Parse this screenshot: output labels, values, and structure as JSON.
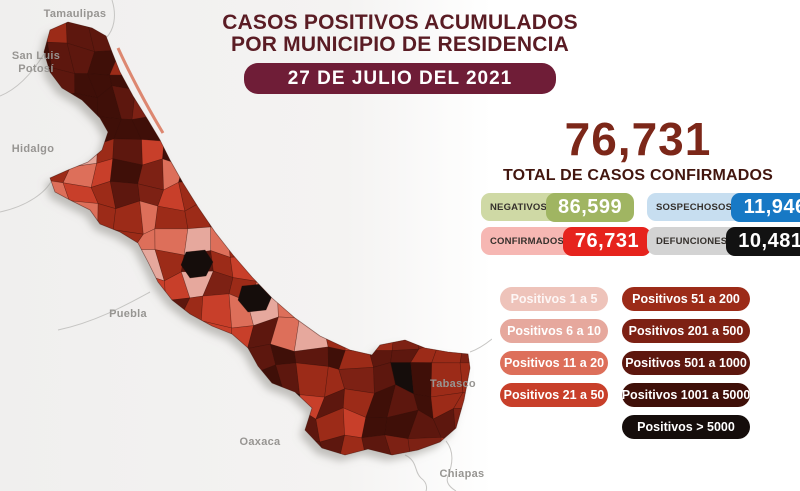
{
  "header": {
    "title_line1": "CASOS POSITIVOS ACUMULADOS",
    "title_line2": "POR MUNICIPIO DE RESIDENCIA",
    "date": "27 DE JULIO DEL 2021"
  },
  "summary": {
    "total_value": "76,731",
    "total_label": "TOTAL DE CASOS CONFIRMADOS"
  },
  "badges": [
    {
      "label": "NEGATIVOS",
      "value": "86,599",
      "bg": "#cfd9a5",
      "value_bg": "#a0b562"
    },
    {
      "label": "SOSPECHOSOS",
      "value": "11,946",
      "bg": "#c7def0",
      "value_bg": "#1779c5"
    },
    {
      "label": "CONFIRMADOS",
      "value": "76,731",
      "bg": "#f6b7b3",
      "value_bg": "#e6231d"
    },
    {
      "label": "DEFUNCIONES",
      "value": "10,481",
      "bg": "#d3d3d3",
      "value_bg": "#121212"
    }
  ],
  "legend": {
    "items": [
      {
        "label": "Positivos 1 a 5",
        "color": "#eec3ba"
      },
      {
        "label": "Positivos 6 a 10",
        "color": "#e6a89d"
      },
      {
        "label": "Positivos 11 a 20",
        "color": "#dd6f5a"
      },
      {
        "label": "Positivos 21 a 50",
        "color": "#c83f2a"
      },
      {
        "label": "Positivos 51 a 200",
        "color": "#9c2b18"
      },
      {
        "label": "Positivos 201 a 500",
        "color": "#7d2114"
      },
      {
        "label": "Positivos 501 a 1000",
        "color": "#5d170e"
      },
      {
        "label": "Positivos 1001 a 5000",
        "color": "#3f0f08"
      },
      {
        "label": "Positivos > 5000",
        "color": "#150d0b"
      }
    ]
  },
  "map": {
    "labels": {
      "tamaulipas": "Tamaulipas",
      "san_luis_1": "San Luis",
      "san_luis_2": "Potosí",
      "hidalgo": "Hidalgo",
      "puebla": "Puebla",
      "oaxaca": "Oaxaca",
      "tabasco": "Tabasco",
      "chiapas": "Chiapas"
    }
  },
  "colors": {
    "title": "#5a1c24",
    "banner": "#6f1d37",
    "number": "#7c2719",
    "total_label": "#42160f"
  }
}
